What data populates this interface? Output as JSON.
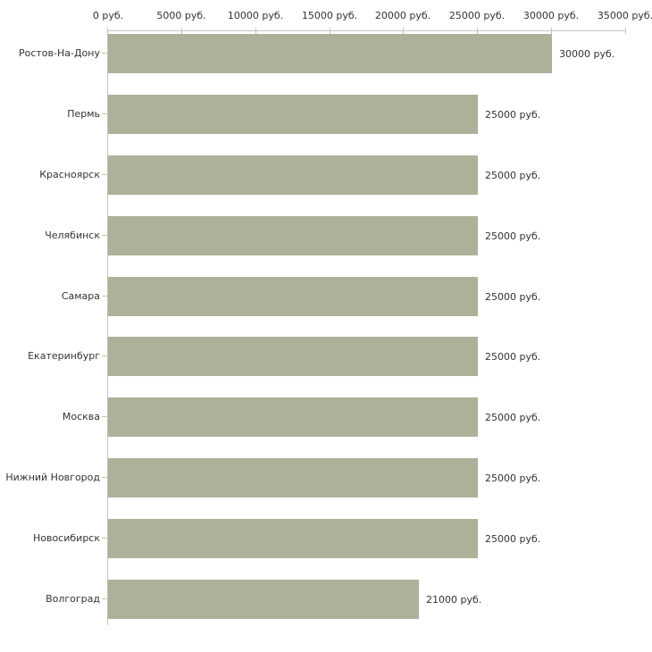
{
  "chart_data": {
    "type": "bar",
    "orientation": "horizontal",
    "title": "",
    "xlabel": "",
    "ylabel": "",
    "unit": "руб.",
    "grid": "off",
    "legend": "none",
    "axis_position": "top",
    "xlim": [
      0,
      35000
    ],
    "x_ticks": [
      0,
      5000,
      10000,
      15000,
      20000,
      25000,
      30000,
      35000
    ],
    "x_tick_labels": [
      "0 руб.",
      "5000 руб.",
      "10000 руб.",
      "15000 руб.",
      "20000 руб.",
      "25000 руб.",
      "30000 руб.",
      "35000 руб."
    ],
    "categories": [
      "Ростов-На-Дону",
      "Пермь",
      "Красноярск",
      "Челябинск",
      "Самара",
      "Екатеринбург",
      "Москва",
      "Нижний Новгород",
      "Новосибирск",
      "Волгоград"
    ],
    "values": [
      30000,
      25000,
      25000,
      25000,
      25000,
      25000,
      25000,
      25000,
      25000,
      21000
    ],
    "value_labels": [
      "30000 руб.",
      "25000 руб.",
      "25000 руб.",
      "25000 руб.",
      "25000 руб.",
      "25000 руб.",
      "25000 руб.",
      "25000 руб.",
      "25000 руб.",
      "21000 руб."
    ],
    "colors": {
      "bar": "#abb299",
      "axis_line": "#c3c3c3",
      "tick_mark": "#c5c8a0",
      "text": "#333333",
      "background": "#ffffff"
    }
  }
}
